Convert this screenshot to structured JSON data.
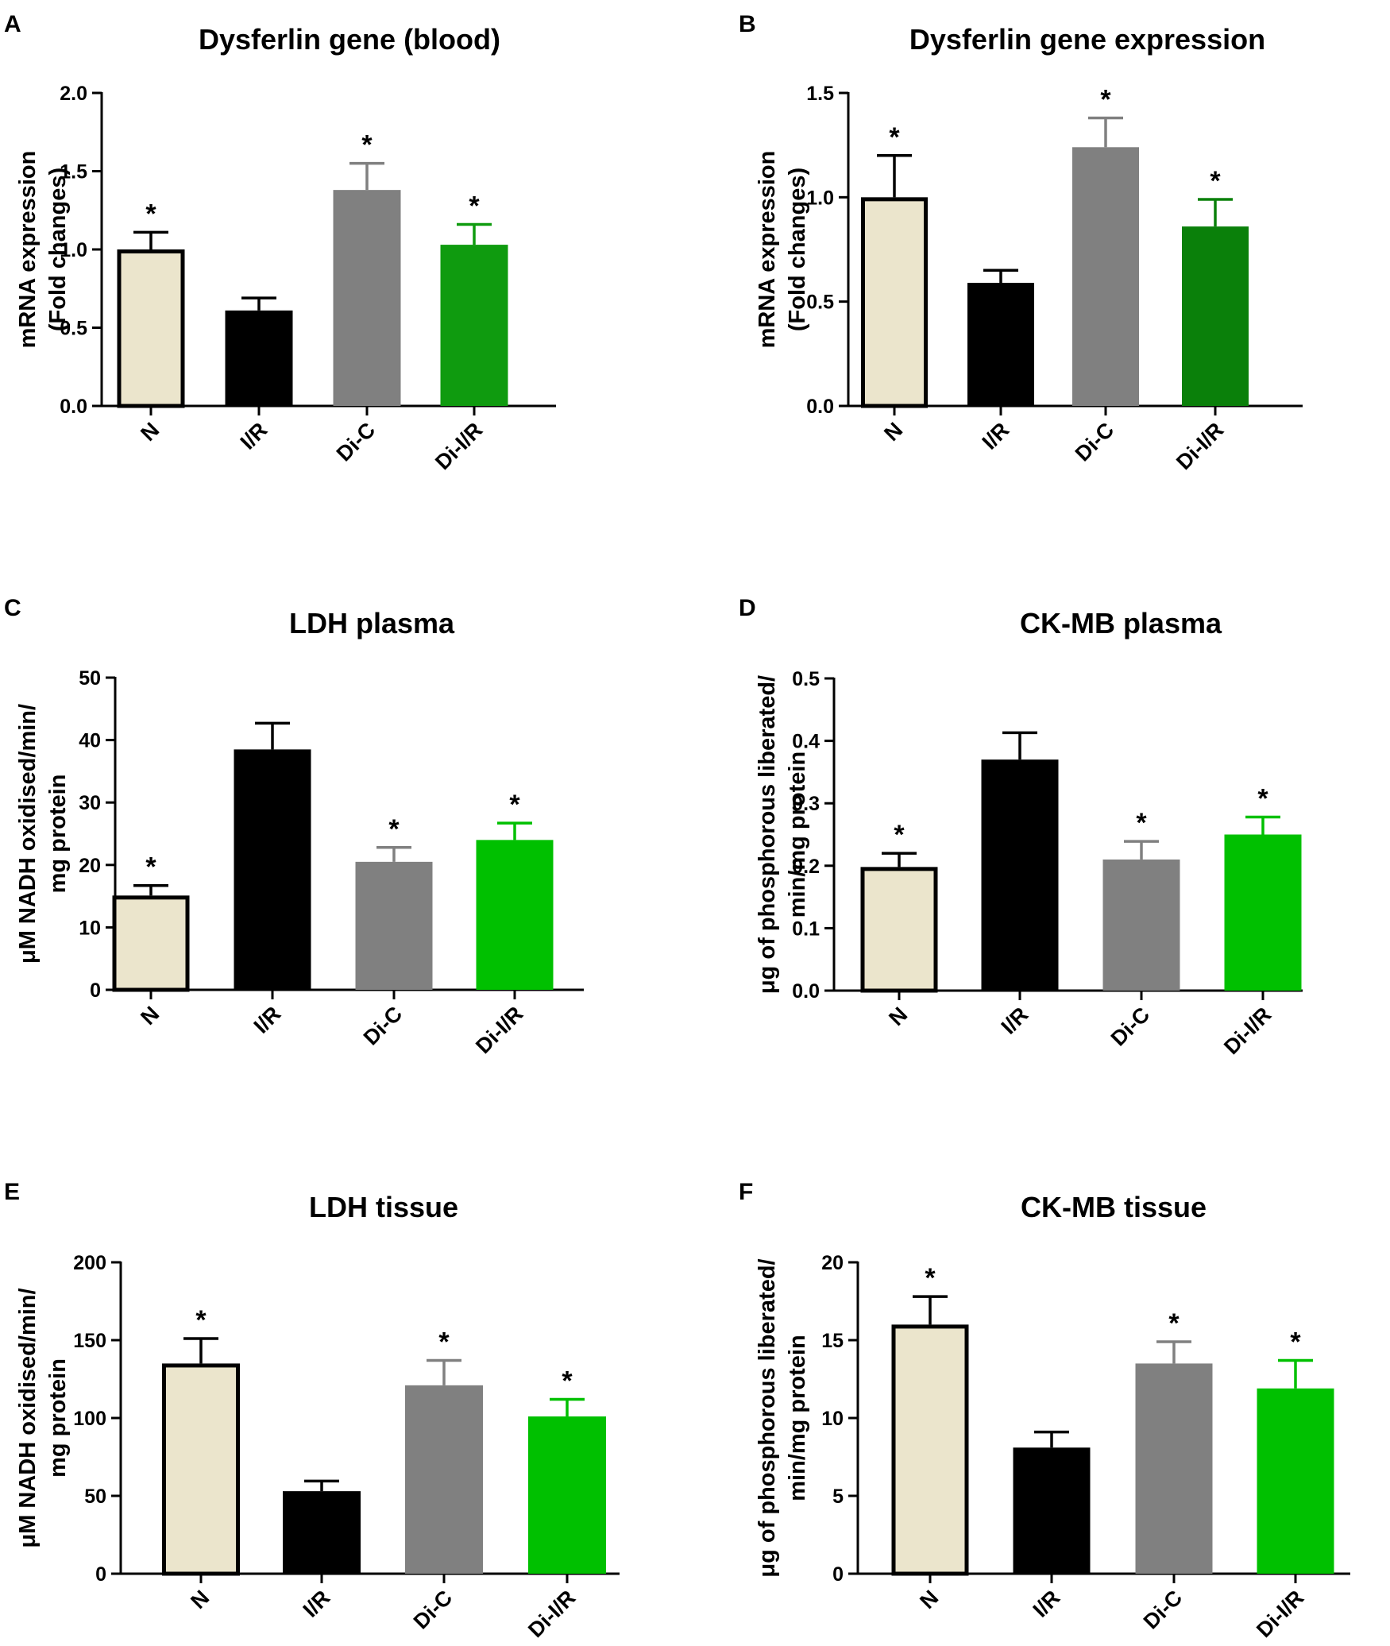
{
  "figure": {
    "charts": [
      {
        "panel": "A",
        "title": "Dysferlin gene (blood)",
        "ylabel": [
          "mRNA expression",
          "(Fold changes)"
        ],
        "ylim": [
          0,
          2.0
        ],
        "yticks": [
          "0.0",
          "0.5",
          "1.0",
          "1.5",
          "2.0"
        ]
      },
      {
        "panel": "B",
        "title": "Dysferlin gene expression",
        "ylabel": [
          "mRNA expression",
          "(Fold changes)"
        ],
        "ylim": [
          0,
          1.5
        ],
        "yticks": [
          "0.0",
          "0.5",
          "1.0",
          "1.5"
        ]
      },
      {
        "panel": "C",
        "title": "LDH plasma",
        "ylabel": [
          "μM NADH oxidised/min/",
          "mg protein"
        ],
        "ylim": [
          0,
          50
        ],
        "yticks": [
          "0",
          "10",
          "20",
          "30",
          "40",
          "50"
        ]
      },
      {
        "panel": "D",
        "title": "CK-MB plasma",
        "ylabel": [
          "μg of phosphorous liberated/",
          "min/mg protein"
        ],
        "ylim": [
          0,
          0.5
        ],
        "yticks": [
          "0.0",
          "0.1",
          "0.2",
          "0.3",
          "0.4",
          "0.5"
        ]
      },
      {
        "panel": "E",
        "title": "LDH tissue",
        "ylabel": [
          "μM NADH oxidised/min/",
          "mg protein"
        ],
        "ylim": [
          0,
          200
        ],
        "yticks": [
          "0",
          "50",
          "100",
          "150",
          "200"
        ]
      },
      {
        "panel": "F",
        "title": "CK-MB tissue",
        "ylabel": [
          "μg of phosphorous liberated/",
          "min/mg protein"
        ],
        "ylim": [
          0,
          20
        ],
        "yticks": [
          "0",
          "5",
          "10",
          "15",
          "20"
        ]
      }
    ]
  },
  "chart_data": [
    {
      "type": "bar",
      "panel": "A",
      "title": "Dysferlin gene (blood)",
      "ylabel": "mRNA expression (Fold changes)",
      "ylim": [
        0,
        2.0
      ],
      "categories": [
        "N",
        "I/R",
        "Di-C",
        "Di-I/R"
      ],
      "values": [
        1.0,
        0.61,
        1.38,
        1.03
      ],
      "errors": [
        0.11,
        0.08,
        0.17,
        0.13
      ],
      "significance": [
        "*",
        "",
        "*",
        "*"
      ],
      "colors": [
        "#ebe5cc",
        "#000000",
        "#808080",
        "#0f9b0f"
      ]
    },
    {
      "type": "bar",
      "panel": "B",
      "title": "Dysferlin gene expression",
      "ylabel": "mRNA expression (Fold changes)",
      "ylim": [
        0,
        1.5
      ],
      "categories": [
        "N",
        "I/R",
        "Di-C",
        "Di-I/R"
      ],
      "values": [
        1.0,
        0.59,
        1.24,
        0.86
      ],
      "errors": [
        0.2,
        0.06,
        0.14,
        0.13
      ],
      "significance": [
        "*",
        "",
        "*",
        "*"
      ],
      "colors": [
        "#ebe5cc",
        "#000000",
        "#808080",
        "#0a800a"
      ]
    },
    {
      "type": "bar",
      "panel": "C",
      "title": "LDH plasma",
      "ylabel": "μM NADH oxidised/min/mg protein",
      "ylim": [
        0,
        50
      ],
      "categories": [
        "N",
        "I/R",
        "Di-C",
        "Di-I/R"
      ],
      "values": [
        15.1,
        38.5,
        20.5,
        24.0
      ],
      "errors": [
        1.6,
        4.2,
        2.3,
        2.7
      ],
      "significance": [
        "*",
        "",
        "*",
        "*"
      ],
      "colors": [
        "#ebe5cc",
        "#000000",
        "#808080",
        "#00c000"
      ]
    },
    {
      "type": "bar",
      "panel": "D",
      "title": "CK-MB plasma",
      "ylabel": "μg of phosphorous liberated/min/mg protein",
      "ylim": [
        0,
        0.5
      ],
      "categories": [
        "N",
        "I/R",
        "Di-C",
        "Di-I/R"
      ],
      "values": [
        0.198,
        0.37,
        0.21,
        0.25
      ],
      "errors": [
        0.022,
        0.043,
        0.029,
        0.028
      ],
      "significance": [
        "*",
        "",
        "*",
        "*"
      ],
      "colors": [
        "#ebe5cc",
        "#000000",
        "#808080",
        "#00c000"
      ]
    },
    {
      "type": "bar",
      "panel": "E",
      "title": "LDH tissue",
      "ylabel": "μM NADH oxidised/min/mg protein",
      "ylim": [
        0,
        200
      ],
      "categories": [
        "N",
        "I/R",
        "Di-C",
        "Di-I/R"
      ],
      "values": [
        135,
        53,
        121,
        101
      ],
      "errors": [
        16,
        6.5,
        16,
        11
      ],
      "significance": [
        "*",
        "",
        "*",
        "*"
      ],
      "colors": [
        "#ebe5cc",
        "#000000",
        "#808080",
        "#00c000"
      ]
    },
    {
      "type": "bar",
      "panel": "F",
      "title": "CK-MB tissue",
      "ylabel": "μg of phosphorous liberated/min/mg protein",
      "ylim": [
        0,
        20
      ],
      "categories": [
        "N",
        "I/R",
        "Di-C",
        "Di-I/R"
      ],
      "values": [
        16.0,
        8.1,
        13.5,
        11.9
      ],
      "errors": [
        1.8,
        1.0,
        1.4,
        1.8
      ],
      "significance": [
        "*",
        "",
        "*",
        "*"
      ],
      "colors": [
        "#ebe5cc",
        "#000000",
        "#808080",
        "#00c000"
      ]
    }
  ]
}
